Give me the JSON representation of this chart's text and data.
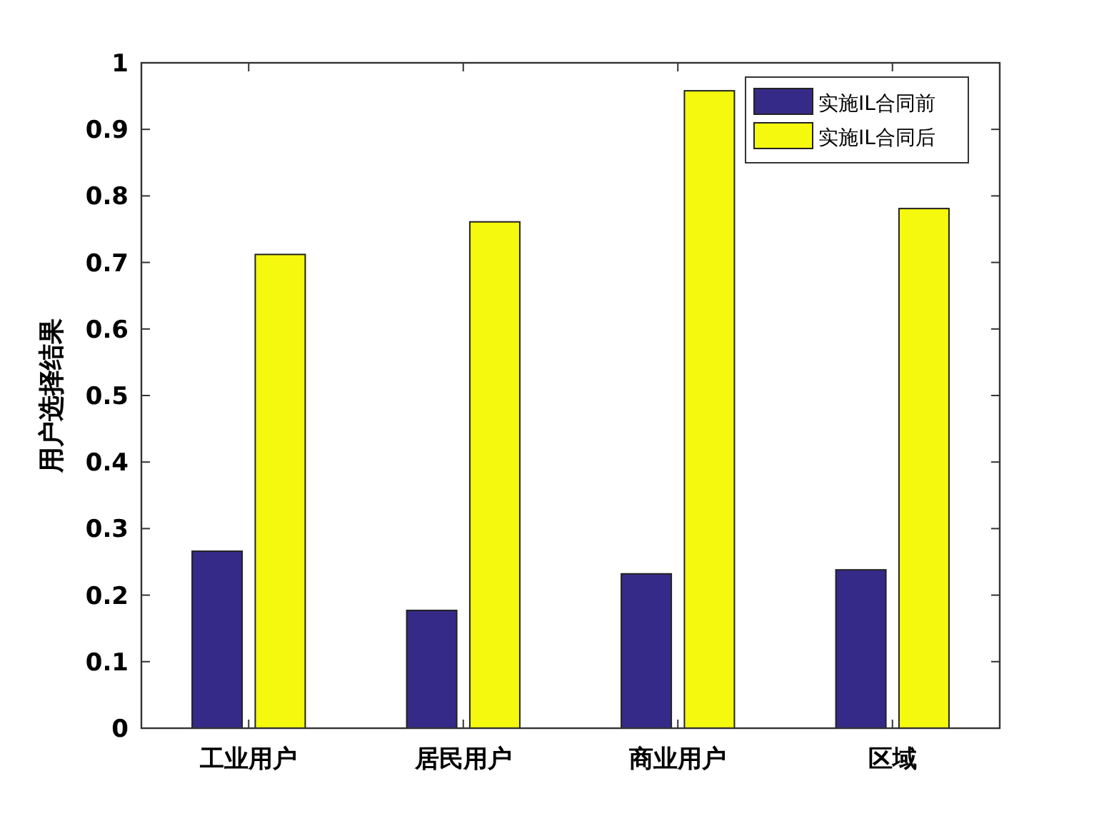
{
  "chart_data": {
    "type": "bar",
    "ylabel": "用户选择结果",
    "categories": [
      "工业用户",
      "居民用户",
      "商业用户",
      "区域"
    ],
    "series": [
      {
        "name": "实施IL合同前",
        "color": "#352a87",
        "values": [
          0.266,
          0.177,
          0.232,
          0.238
        ]
      },
      {
        "name": "实施IL合同后",
        "color": "#f5f90d",
        "values": [
          0.712,
          0.761,
          0.958,
          0.781
        ]
      }
    ],
    "ylim": [
      0,
      1
    ],
    "yticks": [
      0,
      0.1,
      0.2,
      0.3,
      0.4,
      0.5,
      0.6,
      0.7,
      0.8,
      0.9,
      1
    ],
    "legend": "top right",
    "grid": false
  }
}
